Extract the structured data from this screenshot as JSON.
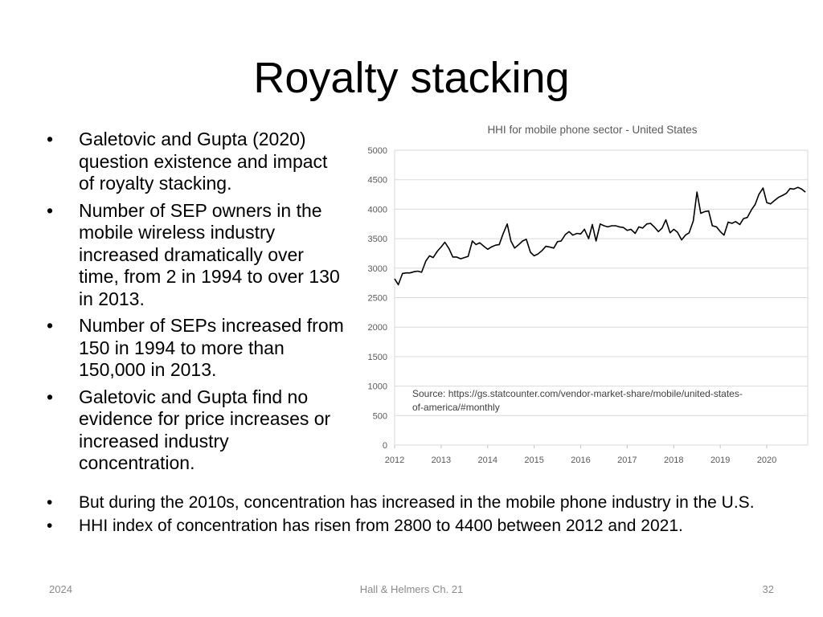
{
  "slide": {
    "title": "Royalty stacking",
    "left_bullets": [
      "Galetovic and Gupta (2020) question existence and impact of royalty stacking.",
      "Number of SEP owners in the mobile wireless industry increased dramatically over time, from 2 in 1994 to over 130 in 2013.",
      "Number of SEPs increased from 150 in 1994 to more than 150,000 in 2013.",
      "Galetovic and Gupta find no evidence for price increases or increased industry concentration."
    ],
    "bottom_bullets": [
      "But during the 2010s, concentration has increased in the mobile phone industry in the U.S.",
      "HHI index of concentration has risen from 2800 to 4400 between 2012 and 2021."
    ],
    "bullet_symbol": "•"
  },
  "footer": {
    "date": "2024",
    "center": "Hall & Helmers Ch. 21",
    "page": "32"
  },
  "chart_data": {
    "type": "line",
    "title": "HHI for mobile phone sector - United States",
    "xlabel": "",
    "ylabel": "",
    "annotation": "Source: https://gs.statcounter.com/vendor-market-share/mobile/united-states-of-america/#monthly",
    "annotation_lines": [
      "Source: https://gs.statcounter.com/vendor-market-share/mobile/united-states-",
      "of-america/#monthly"
    ],
    "x_ticks": [
      "2012",
      "2013",
      "2014",
      "2015",
      "2016",
      "2017",
      "2018",
      "2019",
      "2020"
    ],
    "y_ticks": [
      "0",
      "500",
      "1000",
      "1500",
      "2000",
      "2500",
      "3000",
      "3500",
      "4000",
      "4500",
      "5000"
    ],
    "xlim": [
      2012.0,
      2020.88
    ],
    "ylim": [
      0,
      5000
    ],
    "grid": true,
    "line_color": "#000000",
    "grid_color": "#d9d9d9",
    "series": [
      {
        "values": [
          [
            2012.0,
            2820
          ],
          [
            2012.08,
            2720
          ],
          [
            2012.17,
            2910
          ],
          [
            2012.25,
            2920
          ],
          [
            2012.33,
            2920
          ],
          [
            2012.42,
            2940
          ],
          [
            2012.5,
            2950
          ],
          [
            2012.58,
            2930
          ],
          [
            2012.67,
            3120
          ],
          [
            2012.75,
            3210
          ],
          [
            2012.83,
            3180
          ],
          [
            2012.92,
            3290
          ],
          [
            2013.0,
            3360
          ],
          [
            2013.08,
            3440
          ],
          [
            2013.17,
            3330
          ],
          [
            2013.25,
            3190
          ],
          [
            2013.33,
            3190
          ],
          [
            2013.42,
            3160
          ],
          [
            2013.5,
            3180
          ],
          [
            2013.58,
            3200
          ],
          [
            2013.67,
            3460
          ],
          [
            2013.75,
            3400
          ],
          [
            2013.83,
            3430
          ],
          [
            2013.92,
            3370
          ],
          [
            2014.0,
            3320
          ],
          [
            2014.08,
            3360
          ],
          [
            2014.17,
            3390
          ],
          [
            2014.25,
            3400
          ],
          [
            2014.33,
            3580
          ],
          [
            2014.42,
            3750
          ],
          [
            2014.5,
            3460
          ],
          [
            2014.58,
            3340
          ],
          [
            2014.67,
            3400
          ],
          [
            2014.75,
            3460
          ],
          [
            2014.83,
            3490
          ],
          [
            2014.92,
            3270
          ],
          [
            2015.0,
            3210
          ],
          [
            2015.08,
            3240
          ],
          [
            2015.17,
            3300
          ],
          [
            2015.25,
            3370
          ],
          [
            2015.33,
            3360
          ],
          [
            2015.42,
            3340
          ],
          [
            2015.5,
            3450
          ],
          [
            2015.58,
            3460
          ],
          [
            2015.67,
            3570
          ],
          [
            2015.75,
            3620
          ],
          [
            2015.83,
            3560
          ],
          [
            2015.92,
            3590
          ],
          [
            2016.0,
            3580
          ],
          [
            2016.08,
            3660
          ],
          [
            2016.17,
            3500
          ],
          [
            2016.25,
            3740
          ],
          [
            2016.33,
            3460
          ],
          [
            2016.42,
            3750
          ],
          [
            2016.5,
            3720
          ],
          [
            2016.58,
            3700
          ],
          [
            2016.67,
            3720
          ],
          [
            2016.75,
            3720
          ],
          [
            2016.83,
            3700
          ],
          [
            2016.92,
            3690
          ],
          [
            2017.0,
            3640
          ],
          [
            2017.08,
            3660
          ],
          [
            2017.17,
            3590
          ],
          [
            2017.25,
            3700
          ],
          [
            2017.33,
            3680
          ],
          [
            2017.42,
            3750
          ],
          [
            2017.5,
            3760
          ],
          [
            2017.58,
            3700
          ],
          [
            2017.67,
            3620
          ],
          [
            2017.75,
            3680
          ],
          [
            2017.83,
            3820
          ],
          [
            2017.92,
            3600
          ],
          [
            2018.0,
            3660
          ],
          [
            2018.08,
            3610
          ],
          [
            2018.17,
            3480
          ],
          [
            2018.25,
            3560
          ],
          [
            2018.33,
            3600
          ],
          [
            2018.42,
            3800
          ],
          [
            2018.5,
            4290
          ],
          [
            2018.58,
            3930
          ],
          [
            2018.67,
            3960
          ],
          [
            2018.75,
            3970
          ],
          [
            2018.83,
            3720
          ],
          [
            2018.92,
            3700
          ],
          [
            2019.0,
            3620
          ],
          [
            2019.08,
            3560
          ],
          [
            2019.17,
            3780
          ],
          [
            2019.25,
            3760
          ],
          [
            2019.33,
            3790
          ],
          [
            2019.42,
            3740
          ],
          [
            2019.5,
            3840
          ],
          [
            2019.58,
            3860
          ],
          [
            2019.67,
            3990
          ],
          [
            2019.75,
            4080
          ],
          [
            2019.83,
            4250
          ],
          [
            2019.92,
            4360
          ],
          [
            2020.0,
            4110
          ],
          [
            2020.08,
            4090
          ],
          [
            2020.17,
            4150
          ],
          [
            2020.25,
            4200
          ],
          [
            2020.33,
            4230
          ],
          [
            2020.42,
            4270
          ],
          [
            2020.5,
            4350
          ],
          [
            2020.58,
            4340
          ],
          [
            2020.67,
            4370
          ],
          [
            2020.75,
            4340
          ],
          [
            2020.83,
            4290
          ]
        ]
      }
    ]
  }
}
